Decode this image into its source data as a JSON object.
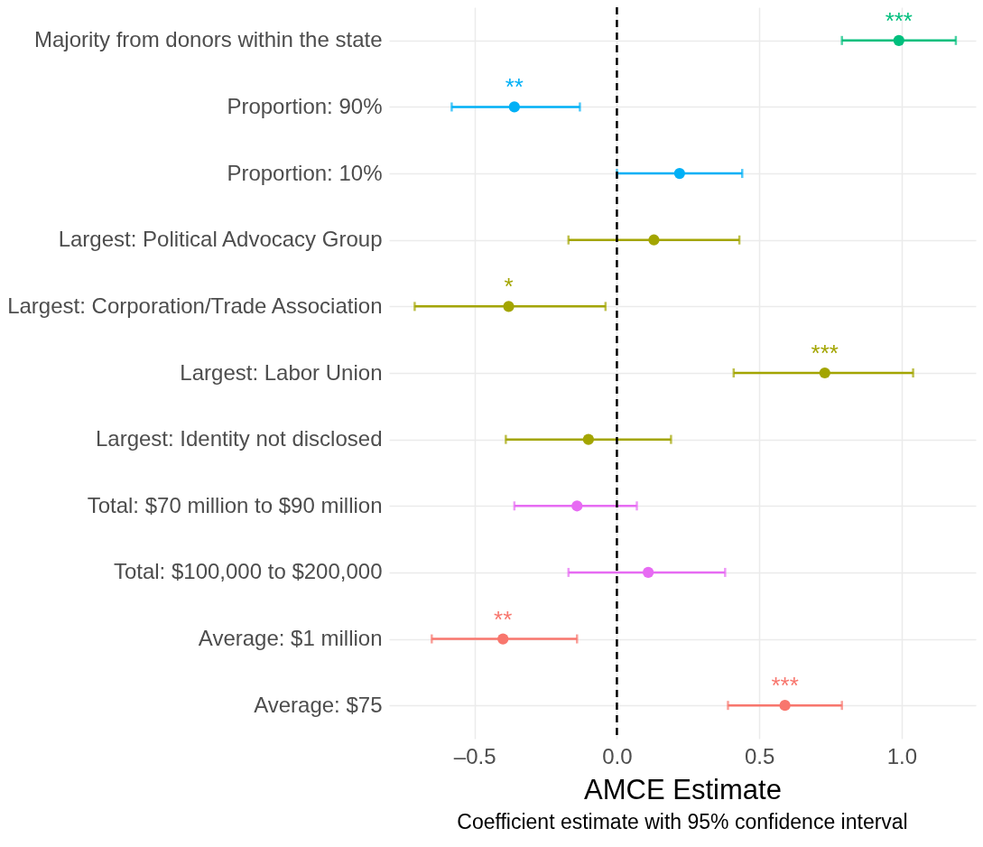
{
  "chart_data": {
    "type": "scatter",
    "orientation": "horizontal",
    "xlabel": "AMCE Estimate",
    "categories": [
      "Majority from donors within the state",
      "Proportion: 90%",
      "Proportion: 10%",
      "Largest: Political Advocacy Group",
      "Largest: Corporation/Trade Association",
      "Largest: Labor Union",
      "Largest: Identity not disclosed",
      "Total: $70 million to $90 million",
      "Total: $100,000 to $200,000",
      "Average: $1 million",
      "Average: $75"
    ],
    "values": [
      0.99,
      -0.36,
      0.22,
      0.13,
      -0.38,
      0.73,
      -0.1,
      -0.14,
      0.11,
      -0.4,
      0.59
    ],
    "errors": [
      [
        0.79,
        1.19
      ],
      [
        -0.58,
        -0.13
      ],
      [
        0.0,
        0.44
      ],
      [
        -0.17,
        0.43
      ],
      [
        -0.71,
        -0.04
      ],
      [
        0.41,
        1.04
      ],
      [
        -0.39,
        0.19
      ],
      [
        -0.36,
        0.07
      ],
      [
        -0.17,
        0.38
      ],
      [
        -0.65,
        -0.14
      ],
      [
        0.39,
        0.79
      ]
    ],
    "colors": [
      "#00bf7d",
      "#00b0f6",
      "#00b0f6",
      "#a3a500",
      "#a3a500",
      "#a3a500",
      "#a3a500",
      "#e76bf3",
      "#e76bf3",
      "#f8766d",
      "#f8766d"
    ],
    "xlim": [
      -0.8,
      1.26
    ],
    "xticks": [
      {
        "value": -0.5,
        "label": "–0.5"
      },
      {
        "value": 0,
        "label": "0.0"
      },
      {
        "value": 0.5,
        "label": "0.5"
      },
      {
        "value": 1,
        "label": "1.0"
      }
    ],
    "grid": true,
    "marker": "circle",
    "ref_lines": [
      {
        "axis": "x",
        "value": 0,
        "color": "#000000",
        "line_style": "dashed"
      }
    ],
    "annotations": [
      {
        "text": "***",
        "x": 0.99,
        "y": "Majority from donors within the state"
      },
      {
        "text": "**",
        "x": -0.36,
        "y": "Proportion: 90%"
      },
      {
        "text": "*",
        "x": -0.38,
        "y": "Largest: Corporation/Trade Association"
      },
      {
        "text": "***",
        "x": 0.73,
        "y": "Largest: Labor Union"
      },
      {
        "text": "**",
        "x": -0.4,
        "y": "Average: $1 million"
      },
      {
        "text": "***",
        "x": 0.59,
        "y": "Average: $75"
      },
      "Coefficient estimate with 95% confidence interval"
    ]
  }
}
